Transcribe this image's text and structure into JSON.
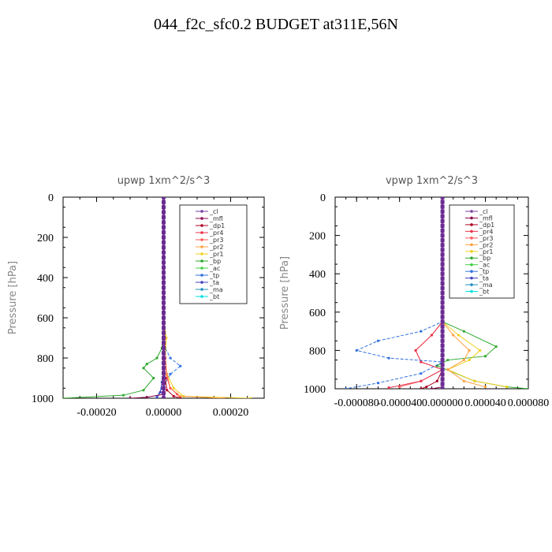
{
  "title": "044_f2c_sfc0.2  BUDGET at311E,56N",
  "legend_entries": [
    "_cl",
    "_mfl",
    "_dp1",
    "_pr4",
    "_pr3",
    "_pr2",
    "_pr1",
    "_bp",
    "_ac",
    "_tp",
    "_ta",
    "_ma",
    "_bt"
  ],
  "series_colors": {
    "_cl": "#7b3fa0",
    "_mfl": "#8b0a50",
    "_dp1": "#b00020",
    "_pr4": "#e8334a",
    "_pr3": "#ff5a5a",
    "_pr2": "#ffa040",
    "_pr1": "#f0d020",
    "_bp": "#2ea82e",
    "_ac": "#40d040",
    "_tp": "#3070e0",
    "_ta": "#4040c0",
    "_ma": "#2090c0",
    "_bt": "#00e0e0"
  },
  "chart_data": [
    {
      "type": "line",
      "title": "upwp   1xm^2/s^3",
      "ylabel": "Pressure  [hPa]",
      "xlabel": "",
      "xlim": [
        -0.0003,
        0.0003
      ],
      "ylim": [
        1000,
        0
      ],
      "xticks": [
        -0.0002,
        0,
        0.0002
      ],
      "xtick_labels": [
        "-0.00020",
        "0.00000",
        "0.00020"
      ],
      "yticks": [
        0,
        200,
        400,
        600,
        800,
        1000
      ],
      "ytick_labels": [
        "0",
        "200",
        "400",
        "600",
        "800",
        "1000"
      ],
      "legend": "top-right",
      "series": [
        {
          "name": "_bp",
          "x": [
            0,
            0,
            -5e-06,
            -2e-05,
            -5e-05,
            -6e-05,
            -3e-05,
            -6e-05,
            -0.00012,
            -0.0003
          ],
          "y": [
            0,
            650,
            750,
            800,
            830,
            850,
            900,
            960,
            985,
            1000
          ]
        },
        {
          "name": "_tp",
          "x": [
            0,
            0,
            5e-06,
            2e-05,
            5e-05,
            2e-05,
            -5e-06,
            -2e-05
          ],
          "y": [
            0,
            650,
            750,
            800,
            840,
            880,
            950,
            990
          ]
        },
        {
          "name": "_pr1",
          "x": [
            0,
            0,
            8e-06,
            5e-06,
            1e-05,
            3e-05,
            6e-05,
            0.00026
          ],
          "y": [
            0,
            600,
            700,
            800,
            880,
            950,
            990,
            1000
          ]
        },
        {
          "name": "_pr2",
          "x": [
            0,
            0,
            5e-06,
            3e-06,
            1e-05,
            2e-05,
            5e-05,
            0.00018
          ],
          "y": [
            0,
            600,
            700,
            800,
            880,
            950,
            990,
            1000
          ]
        },
        {
          "name": "_pr3",
          "x": [
            0,
            0,
            5e-06,
            1e-05,
            2e-05,
            4e-05,
            5e-05
          ],
          "y": [
            0,
            700,
            800,
            900,
            950,
            980,
            1000
          ]
        },
        {
          "name": "_dp1",
          "x": [
            0,
            0,
            5e-06,
            1e-05,
            3e-05,
            5e-05
          ],
          "y": [
            0,
            800,
            900,
            960,
            990,
            1000
          ]
        },
        {
          "name": "_ta",
          "x": [
            0,
            0,
            -5e-06,
            -1e-05,
            -2e-05
          ],
          "y": [
            0,
            850,
            920,
            970,
            1000
          ]
        },
        {
          "name": "_mfl",
          "x": [
            0,
            0,
            -5e-05,
            -0.0001
          ],
          "y": [
            0,
            980,
            995,
            1000
          ]
        },
        {
          "name": "_cl",
          "x": [
            0,
            0,
            0
          ],
          "y": [
            0,
            500,
            1000
          ]
        }
      ]
    },
    {
      "type": "line",
      "title": "vpwp   1xm^2/s^3",
      "ylabel": "Pressure  [hPa]",
      "xlabel": "",
      "xlim": [
        -0.0001,
        8e-05
      ],
      "ylim": [
        1000,
        0
      ],
      "xticks": [
        -8e-05,
        -4e-05,
        0,
        4e-05,
        8e-05
      ],
      "xtick_labels": [
        "-0.000080",
        "-0.000040",
        "0.000000",
        "0.000040",
        "0.000080"
      ],
      "yticks": [
        0,
        200,
        400,
        600,
        800,
        1000
      ],
      "ytick_labels": [
        "0",
        "200",
        "400",
        "600",
        "800",
        "1000"
      ],
      "legend": "top-right",
      "series": [
        {
          "name": "_bp",
          "x": [
            0,
            0,
            2e-05,
            5e-05,
            4e-05,
            5e-06,
            -5e-06,
            3e-05,
            6e-05,
            8e-05
          ],
          "y": [
            0,
            650,
            700,
            780,
            830,
            850,
            880,
            960,
            990,
            1000
          ]
        },
        {
          "name": "_pr1",
          "x": [
            0,
            0,
            1.5e-05,
            3.5e-05,
            2.5e-05,
            5e-06,
            3e-05,
            6e-05
          ],
          "y": [
            0,
            650,
            720,
            800,
            850,
            900,
            960,
            990
          ]
        },
        {
          "name": "_pr2",
          "x": [
            0,
            0,
            1e-05,
            2.5e-05,
            2e-05,
            5e-06,
            2e-05,
            4e-05
          ],
          "y": [
            0,
            650,
            720,
            800,
            850,
            900,
            960,
            990
          ]
        },
        {
          "name": "_pr3",
          "x": [
            0,
            0,
            -1e-05,
            -2.5e-05,
            -2e-05,
            0,
            -2e-05,
            -4e-05
          ],
          "y": [
            0,
            650,
            720,
            800,
            860,
            900,
            960,
            990
          ]
        },
        {
          "name": "_pr4",
          "x": [
            0,
            0,
            -1e-05,
            -2.5e-05,
            -2e-05,
            0,
            -2e-05,
            -5e-05
          ],
          "y": [
            0,
            650,
            720,
            800,
            860,
            900,
            960,
            995
          ]
        },
        {
          "name": "_tp",
          "x": [
            0,
            0,
            -2e-05,
            -6e-05,
            -8e-05,
            -5e-05,
            0,
            -2e-05,
            -6e-05,
            -9e-05
          ],
          "y": [
            0,
            650,
            700,
            750,
            800,
            840,
            860,
            920,
            970,
            1000
          ]
        },
        {
          "name": "_dp1",
          "x": [
            0,
            0,
            -5e-06,
            -1.5e-05,
            -2e-05
          ],
          "y": [
            0,
            900,
            960,
            990,
            1000
          ]
        },
        {
          "name": "_mfl",
          "x": [
            0,
            0,
            -1e-05
          ],
          "y": [
            0,
            990,
            1000
          ]
        },
        {
          "name": "_cl",
          "x": [
            0,
            0,
            0
          ],
          "y": [
            0,
            500,
            1000
          ]
        }
      ]
    }
  ]
}
